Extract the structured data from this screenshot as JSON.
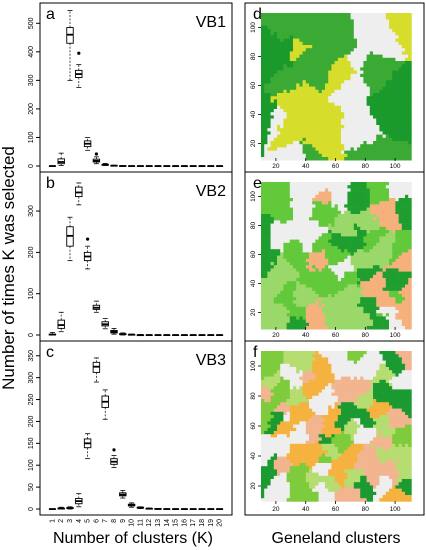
{
  "figure": {
    "ylabel": "Number of times K was selected",
    "xlabel": "Number of clusters (K)",
    "right_caption": "Geneland clusters"
  },
  "chart_data": [
    {
      "type": "boxplot",
      "panel_letter": "a",
      "title": "VB1",
      "categories": [
        "1",
        "2",
        "3",
        "4",
        "5",
        "6",
        "7",
        "8",
        "9",
        "10",
        "11",
        "12",
        "13",
        "14",
        "15",
        "16",
        "17",
        "18",
        "19",
        "20"
      ],
      "ylim": [
        0,
        550
      ],
      "yticks": [
        0,
        100,
        200,
        300,
        400,
        500
      ],
      "boxes": [
        {
          "min": 0,
          "q1": 0,
          "median": 0,
          "q3": 0,
          "max": 0
        },
        {
          "min": 2,
          "q1": 8,
          "median": 14,
          "q3": 25,
          "max": 45
        },
        {
          "min": 300,
          "q1": 430,
          "median": 460,
          "q3": 485,
          "max": 545
        },
        {
          "min": 275,
          "q1": 310,
          "median": 322,
          "q3": 335,
          "max": 355,
          "outliers": [
            395
          ]
        },
        {
          "min": 55,
          "q1": 68,
          "median": 78,
          "q3": 88,
          "max": 100
        },
        {
          "min": 8,
          "q1": 14,
          "median": 18,
          "q3": 24,
          "max": 32,
          "outliers": [
            42
          ]
        },
        {
          "min": 2,
          "q1": 3,
          "median": 4,
          "q3": 6,
          "max": 9
        },
        {
          "min": 0,
          "q1": 0,
          "median": 1,
          "q3": 2,
          "max": 3
        },
        {
          "min": 0,
          "q1": 0,
          "median": 0,
          "q3": 1,
          "max": 1
        },
        {
          "min": 0,
          "q1": 0,
          "median": 0,
          "q3": 0,
          "max": 0
        },
        {
          "min": 0,
          "q1": 0,
          "median": 0,
          "q3": 0,
          "max": 0
        },
        {
          "min": 0,
          "q1": 0,
          "median": 0,
          "q3": 0,
          "max": 0
        },
        {
          "min": 0,
          "q1": 0,
          "median": 0,
          "q3": 0,
          "max": 0
        },
        {
          "min": 0,
          "q1": 0,
          "median": 0,
          "q3": 0,
          "max": 0
        },
        {
          "min": 0,
          "q1": 0,
          "median": 0,
          "q3": 0,
          "max": 0
        },
        {
          "min": 0,
          "q1": 0,
          "median": 0,
          "q3": 0,
          "max": 0
        },
        {
          "min": 0,
          "q1": 0,
          "median": 0,
          "q3": 0,
          "max": 0
        },
        {
          "min": 0,
          "q1": 0,
          "median": 0,
          "q3": 0,
          "max": 0
        },
        {
          "min": 0,
          "q1": 0,
          "median": 0,
          "q3": 0,
          "max": 0
        },
        {
          "min": 0,
          "q1": 0,
          "median": 0,
          "q3": 0,
          "max": 0
        }
      ]
    },
    {
      "type": "boxplot",
      "panel_letter": "b",
      "title": "VB2",
      "categories": [
        "1",
        "2",
        "3",
        "4",
        "5",
        "6",
        "7",
        "8",
        "9",
        "10",
        "11",
        "12",
        "13",
        "14",
        "15",
        "16",
        "17",
        "18",
        "19",
        "20"
      ],
      "ylim": [
        0,
        380
      ],
      "yticks": [
        0,
        100,
        200,
        300
      ],
      "boxes": [
        {
          "min": 0,
          "q1": 0,
          "median": 1,
          "q3": 2,
          "max": 6
        },
        {
          "min": 8,
          "q1": 16,
          "median": 24,
          "q3": 36,
          "max": 55
        },
        {
          "min": 180,
          "q1": 215,
          "median": 240,
          "q3": 262,
          "max": 285
        },
        {
          "min": 315,
          "q1": 335,
          "median": 345,
          "q3": 358,
          "max": 368
        },
        {
          "min": 160,
          "q1": 180,
          "median": 190,
          "q3": 200,
          "max": 215,
          "outliers": [
            232
          ]
        },
        {
          "min": 55,
          "q1": 62,
          "median": 66,
          "q3": 72,
          "max": 82
        },
        {
          "min": 15,
          "q1": 22,
          "median": 26,
          "q3": 32,
          "max": 40
        },
        {
          "min": 2,
          "q1": 5,
          "median": 8,
          "q3": 11,
          "max": 16
        },
        {
          "min": 0,
          "q1": 1,
          "median": 2,
          "q3": 3,
          "max": 5
        },
        {
          "min": 0,
          "q1": 0,
          "median": 1,
          "q3": 1,
          "max": 2
        },
        {
          "min": 0,
          "q1": 0,
          "median": 0,
          "q3": 0,
          "max": 1
        },
        {
          "min": 0,
          "q1": 0,
          "median": 0,
          "q3": 0,
          "max": 0
        },
        {
          "min": 0,
          "q1": 0,
          "median": 0,
          "q3": 0,
          "max": 0
        },
        {
          "min": 0,
          "q1": 0,
          "median": 0,
          "q3": 0,
          "max": 0
        },
        {
          "min": 0,
          "q1": 0,
          "median": 0,
          "q3": 0,
          "max": 0
        },
        {
          "min": 0,
          "q1": 0,
          "median": 0,
          "q3": 0,
          "max": 0
        },
        {
          "min": 0,
          "q1": 0,
          "median": 0,
          "q3": 0,
          "max": 0
        },
        {
          "min": 0,
          "q1": 0,
          "median": 0,
          "q3": 0,
          "max": 0
        },
        {
          "min": 0,
          "q1": 0,
          "median": 0,
          "q3": 0,
          "max": 0
        },
        {
          "min": 0,
          "q1": 0,
          "median": 0,
          "q3": 0,
          "max": 0
        }
      ]
    },
    {
      "type": "boxplot",
      "panel_letter": "c",
      "title": "VB3",
      "categories": [
        "1",
        "2",
        "3",
        "4",
        "5",
        "6",
        "7",
        "8",
        "9",
        "10",
        "11",
        "12",
        "13",
        "14",
        "15",
        "16",
        "17",
        "18",
        "19",
        "20"
      ],
      "ylim": [
        0,
        370
      ],
      "yticks": [
        0,
        50,
        100,
        150,
        200,
        250,
        300,
        350
      ],
      "boxes": [
        {
          "min": 0,
          "q1": 0,
          "median": 0,
          "q3": 0,
          "max": 0
        },
        {
          "min": 0,
          "q1": 0,
          "median": 1,
          "q3": 2,
          "max": 4
        },
        {
          "min": 0,
          "q1": 1,
          "median": 2,
          "q3": 3,
          "max": 5
        },
        {
          "min": 5,
          "q1": 12,
          "median": 18,
          "q3": 24,
          "max": 35
        },
        {
          "min": 115,
          "q1": 140,
          "median": 150,
          "q3": 160,
          "max": 172
        },
        {
          "min": 290,
          "q1": 312,
          "median": 325,
          "q3": 335,
          "max": 345
        },
        {
          "min": 205,
          "q1": 232,
          "median": 245,
          "q3": 258,
          "max": 272
        },
        {
          "min": 95,
          "q1": 102,
          "median": 108,
          "q3": 115,
          "max": 122,
          "outliers": [
            135
          ]
        },
        {
          "min": 25,
          "q1": 30,
          "median": 33,
          "q3": 37,
          "max": 42
        },
        {
          "min": 4,
          "q1": 7,
          "median": 9,
          "q3": 11,
          "max": 14
        },
        {
          "min": 1,
          "q1": 2,
          "median": 3,
          "q3": 4,
          "max": 5
        },
        {
          "min": 0,
          "q1": 0,
          "median": 1,
          "q3": 1,
          "max": 2
        },
        {
          "min": 0,
          "q1": 0,
          "median": 0,
          "q3": 1,
          "max": 1
        },
        {
          "min": 0,
          "q1": 0,
          "median": 0,
          "q3": 0,
          "max": 0
        },
        {
          "min": 0,
          "q1": 0,
          "median": 0,
          "q3": 0,
          "max": 0
        },
        {
          "min": 0,
          "q1": 0,
          "median": 0,
          "q3": 0,
          "max": 0
        },
        {
          "min": 0,
          "q1": 0,
          "median": 0,
          "q3": 0,
          "max": 0
        },
        {
          "min": 0,
          "q1": 0,
          "median": 0,
          "q3": 0,
          "max": 0
        },
        {
          "min": 0,
          "q1": 0,
          "median": 0,
          "q3": 0,
          "max": 0
        },
        {
          "min": 0,
          "q1": 0,
          "median": 0,
          "q3": 0,
          "max": 0
        }
      ]
    },
    {
      "type": "heatmap",
      "panel_letter": "d",
      "xticks": [
        20,
        40,
        60,
        80,
        100
      ],
      "yticks": [
        20,
        40,
        60,
        80,
        100
      ],
      "xlim": [
        10,
        110
      ],
      "ylim": [
        10,
        110
      ],
      "colors": [
        "#eeeeee",
        "#d6dd2a",
        "#3aaa35",
        "#1b9a2c"
      ]
    },
    {
      "type": "heatmap",
      "panel_letter": "e",
      "xticks": [
        20,
        40,
        60,
        80,
        100
      ],
      "yticks": [
        20,
        40,
        60,
        80,
        100
      ],
      "xlim": [
        10,
        110
      ],
      "ylim": [
        10,
        110
      ],
      "colors": [
        "#eeeeee",
        "#f5b07c",
        "#1f9e2f",
        "#62c93a",
        "#9bd86a"
      ]
    },
    {
      "type": "heatmap",
      "panel_letter": "f",
      "xticks": [
        20,
        40,
        60,
        80,
        100
      ],
      "yticks": [
        20,
        40,
        60,
        80,
        100
      ],
      "xlim": [
        10,
        110
      ],
      "ylim": [
        10,
        110
      ],
      "colors": [
        "#eeeeee",
        "#f2b58f",
        "#f5b23e",
        "#1a9a30",
        "#7ecb3c",
        "#b5dd70"
      ]
    }
  ]
}
